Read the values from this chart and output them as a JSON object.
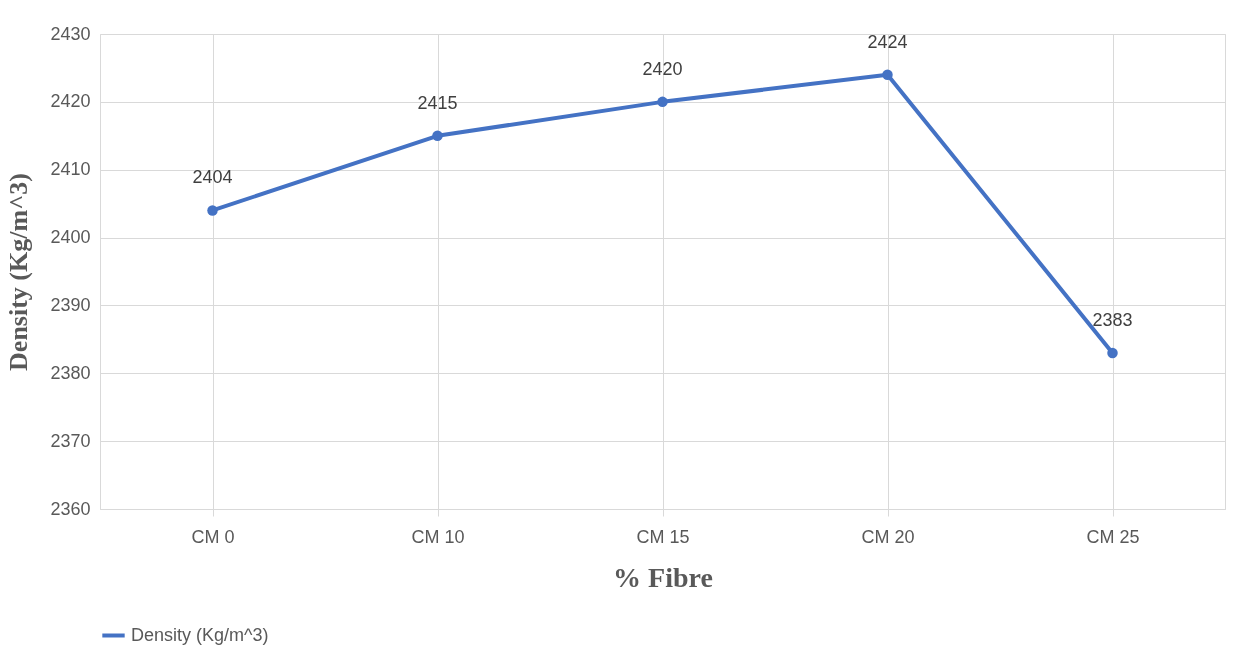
{
  "chart_data": {
    "type": "line",
    "xlabel": "% Fibre",
    "ylabel": "Density (Kg/m^3)",
    "categories": [
      "CM 0",
      "CM 10",
      "CM 15",
      "CM 20",
      "CM 25"
    ],
    "series": [
      {
        "name": "Density (Kg/m^3)",
        "color": "#4472c4",
        "values": [
          2404,
          2415,
          2420,
          2424,
          2383
        ]
      }
    ],
    "ylim": [
      2360,
      2430
    ],
    "yticks": [
      2360,
      2370,
      2380,
      2390,
      2400,
      2410,
      2420,
      2430
    ],
    "grid": true,
    "legend": "bottom",
    "marker": "circle",
    "data_labels": true
  }
}
